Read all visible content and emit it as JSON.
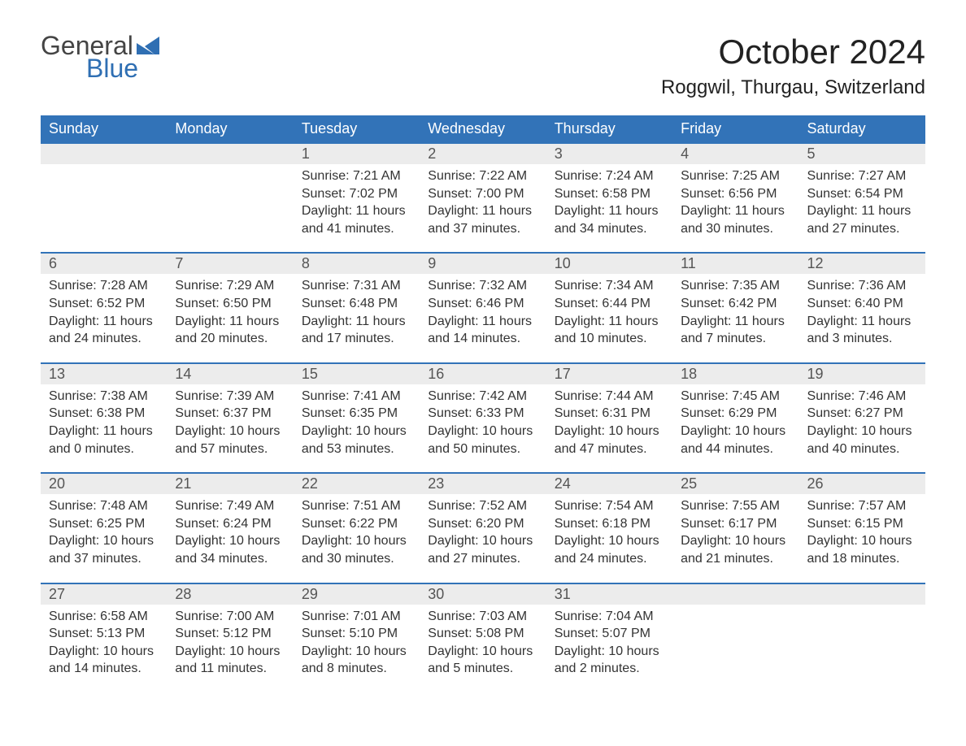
{
  "brand": {
    "top": "General",
    "bottom": "Blue",
    "icon_color": "#2f6fb3"
  },
  "title": "October 2024",
  "location": "Roggwil, Thurgau, Switzerland",
  "colors": {
    "header_bg": "#3273b8",
    "header_fg": "#ffffff",
    "day_number_bg": "#ececec",
    "row_divider": "#3273b8",
    "body_bg": "#ffffff",
    "text": "#333333"
  },
  "weekdays": [
    "Sunday",
    "Monday",
    "Tuesday",
    "Wednesday",
    "Thursday",
    "Friday",
    "Saturday"
  ],
  "weeks": [
    [
      {
        "day": "",
        "sunrise": "",
        "sunset": "",
        "daylight1": "",
        "daylight2": ""
      },
      {
        "day": "",
        "sunrise": "",
        "sunset": "",
        "daylight1": "",
        "daylight2": ""
      },
      {
        "day": "1",
        "sunrise": "Sunrise: 7:21 AM",
        "sunset": "Sunset: 7:02 PM",
        "daylight1": "Daylight: 11 hours",
        "daylight2": "and 41 minutes."
      },
      {
        "day": "2",
        "sunrise": "Sunrise: 7:22 AM",
        "sunset": "Sunset: 7:00 PM",
        "daylight1": "Daylight: 11 hours",
        "daylight2": "and 37 minutes."
      },
      {
        "day": "3",
        "sunrise": "Sunrise: 7:24 AM",
        "sunset": "Sunset: 6:58 PM",
        "daylight1": "Daylight: 11 hours",
        "daylight2": "and 34 minutes."
      },
      {
        "day": "4",
        "sunrise": "Sunrise: 7:25 AM",
        "sunset": "Sunset: 6:56 PM",
        "daylight1": "Daylight: 11 hours",
        "daylight2": "and 30 minutes."
      },
      {
        "day": "5",
        "sunrise": "Sunrise: 7:27 AM",
        "sunset": "Sunset: 6:54 PM",
        "daylight1": "Daylight: 11 hours",
        "daylight2": "and 27 minutes."
      }
    ],
    [
      {
        "day": "6",
        "sunrise": "Sunrise: 7:28 AM",
        "sunset": "Sunset: 6:52 PM",
        "daylight1": "Daylight: 11 hours",
        "daylight2": "and 24 minutes."
      },
      {
        "day": "7",
        "sunrise": "Sunrise: 7:29 AM",
        "sunset": "Sunset: 6:50 PM",
        "daylight1": "Daylight: 11 hours",
        "daylight2": "and 20 minutes."
      },
      {
        "day": "8",
        "sunrise": "Sunrise: 7:31 AM",
        "sunset": "Sunset: 6:48 PM",
        "daylight1": "Daylight: 11 hours",
        "daylight2": "and 17 minutes."
      },
      {
        "day": "9",
        "sunrise": "Sunrise: 7:32 AM",
        "sunset": "Sunset: 6:46 PM",
        "daylight1": "Daylight: 11 hours",
        "daylight2": "and 14 minutes."
      },
      {
        "day": "10",
        "sunrise": "Sunrise: 7:34 AM",
        "sunset": "Sunset: 6:44 PM",
        "daylight1": "Daylight: 11 hours",
        "daylight2": "and 10 minutes."
      },
      {
        "day": "11",
        "sunrise": "Sunrise: 7:35 AM",
        "sunset": "Sunset: 6:42 PM",
        "daylight1": "Daylight: 11 hours",
        "daylight2": "and 7 minutes."
      },
      {
        "day": "12",
        "sunrise": "Sunrise: 7:36 AM",
        "sunset": "Sunset: 6:40 PM",
        "daylight1": "Daylight: 11 hours",
        "daylight2": "and 3 minutes."
      }
    ],
    [
      {
        "day": "13",
        "sunrise": "Sunrise: 7:38 AM",
        "sunset": "Sunset: 6:38 PM",
        "daylight1": "Daylight: 11 hours",
        "daylight2": "and 0 minutes."
      },
      {
        "day": "14",
        "sunrise": "Sunrise: 7:39 AM",
        "sunset": "Sunset: 6:37 PM",
        "daylight1": "Daylight: 10 hours",
        "daylight2": "and 57 minutes."
      },
      {
        "day": "15",
        "sunrise": "Sunrise: 7:41 AM",
        "sunset": "Sunset: 6:35 PM",
        "daylight1": "Daylight: 10 hours",
        "daylight2": "and 53 minutes."
      },
      {
        "day": "16",
        "sunrise": "Sunrise: 7:42 AM",
        "sunset": "Sunset: 6:33 PM",
        "daylight1": "Daylight: 10 hours",
        "daylight2": "and 50 minutes."
      },
      {
        "day": "17",
        "sunrise": "Sunrise: 7:44 AM",
        "sunset": "Sunset: 6:31 PM",
        "daylight1": "Daylight: 10 hours",
        "daylight2": "and 47 minutes."
      },
      {
        "day": "18",
        "sunrise": "Sunrise: 7:45 AM",
        "sunset": "Sunset: 6:29 PM",
        "daylight1": "Daylight: 10 hours",
        "daylight2": "and 44 minutes."
      },
      {
        "day": "19",
        "sunrise": "Sunrise: 7:46 AM",
        "sunset": "Sunset: 6:27 PM",
        "daylight1": "Daylight: 10 hours",
        "daylight2": "and 40 minutes."
      }
    ],
    [
      {
        "day": "20",
        "sunrise": "Sunrise: 7:48 AM",
        "sunset": "Sunset: 6:25 PM",
        "daylight1": "Daylight: 10 hours",
        "daylight2": "and 37 minutes."
      },
      {
        "day": "21",
        "sunrise": "Sunrise: 7:49 AM",
        "sunset": "Sunset: 6:24 PM",
        "daylight1": "Daylight: 10 hours",
        "daylight2": "and 34 minutes."
      },
      {
        "day": "22",
        "sunrise": "Sunrise: 7:51 AM",
        "sunset": "Sunset: 6:22 PM",
        "daylight1": "Daylight: 10 hours",
        "daylight2": "and 30 minutes."
      },
      {
        "day": "23",
        "sunrise": "Sunrise: 7:52 AM",
        "sunset": "Sunset: 6:20 PM",
        "daylight1": "Daylight: 10 hours",
        "daylight2": "and 27 minutes."
      },
      {
        "day": "24",
        "sunrise": "Sunrise: 7:54 AM",
        "sunset": "Sunset: 6:18 PM",
        "daylight1": "Daylight: 10 hours",
        "daylight2": "and 24 minutes."
      },
      {
        "day": "25",
        "sunrise": "Sunrise: 7:55 AM",
        "sunset": "Sunset: 6:17 PM",
        "daylight1": "Daylight: 10 hours",
        "daylight2": "and 21 minutes."
      },
      {
        "day": "26",
        "sunrise": "Sunrise: 7:57 AM",
        "sunset": "Sunset: 6:15 PM",
        "daylight1": "Daylight: 10 hours",
        "daylight2": "and 18 minutes."
      }
    ],
    [
      {
        "day": "27",
        "sunrise": "Sunrise: 6:58 AM",
        "sunset": "Sunset: 5:13 PM",
        "daylight1": "Daylight: 10 hours",
        "daylight2": "and 14 minutes."
      },
      {
        "day": "28",
        "sunrise": "Sunrise: 7:00 AM",
        "sunset": "Sunset: 5:12 PM",
        "daylight1": "Daylight: 10 hours",
        "daylight2": "and 11 minutes."
      },
      {
        "day": "29",
        "sunrise": "Sunrise: 7:01 AM",
        "sunset": "Sunset: 5:10 PM",
        "daylight1": "Daylight: 10 hours",
        "daylight2": "and 8 minutes."
      },
      {
        "day": "30",
        "sunrise": "Sunrise: 7:03 AM",
        "sunset": "Sunset: 5:08 PM",
        "daylight1": "Daylight: 10 hours",
        "daylight2": "and 5 minutes."
      },
      {
        "day": "31",
        "sunrise": "Sunrise: 7:04 AM",
        "sunset": "Sunset: 5:07 PM",
        "daylight1": "Daylight: 10 hours",
        "daylight2": "and 2 minutes."
      },
      {
        "day": "",
        "sunrise": "",
        "sunset": "",
        "daylight1": "",
        "daylight2": ""
      },
      {
        "day": "",
        "sunrise": "",
        "sunset": "",
        "daylight1": "",
        "daylight2": ""
      }
    ]
  ]
}
